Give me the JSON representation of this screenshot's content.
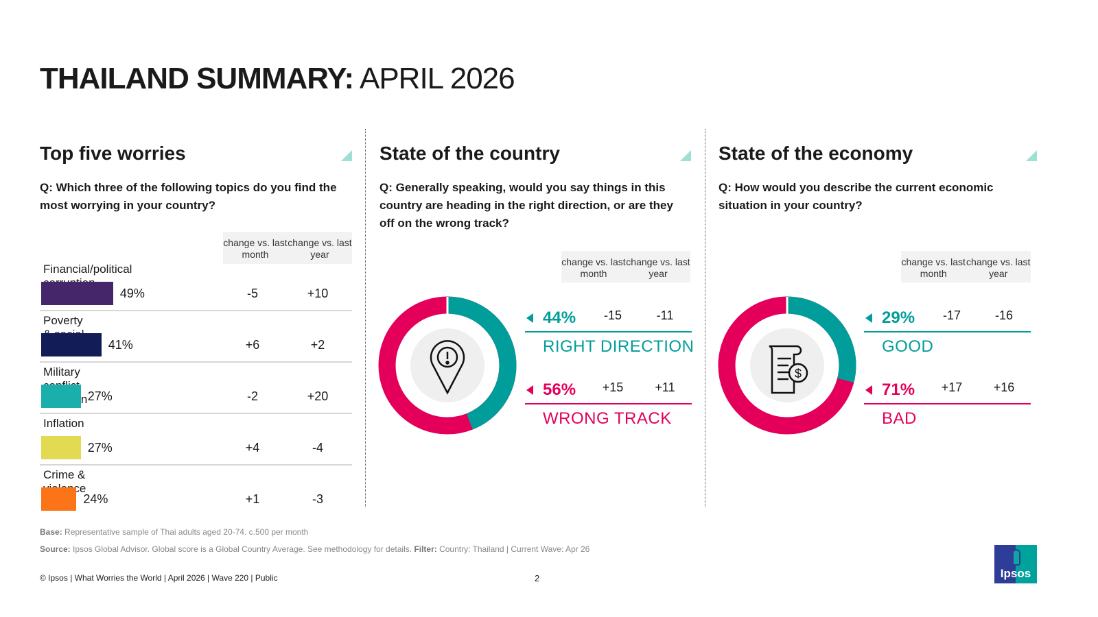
{
  "title": {
    "bold": "THAILAND SUMMARY:",
    "light": " APRIL 2026"
  },
  "header_cols": {
    "month": "change vs. last month",
    "year": "change vs. last year"
  },
  "worries": {
    "title": "Top five worries",
    "question": "Q: Which three of the following topics do you find the most worrying in your country?",
    "items": [
      {
        "label": "Financial/political corruption",
        "pct": "49%",
        "value": 49,
        "month": "-5",
        "year": "+10",
        "color": "#46266a"
      },
      {
        "label": "Poverty & social inequality",
        "pct": "41%",
        "value": 41,
        "month": "+6",
        "year": "+2",
        "color": "#121c57"
      },
      {
        "label": "Military conflict between",
        "pct": "27%",
        "value": 27,
        "month": "-2",
        "year": "+20",
        "color": "#1aafab"
      },
      {
        "label": "Inflation",
        "pct": "27%",
        "value": 27,
        "month": "+4",
        "year": "-4",
        "color": "#e2da52"
      },
      {
        "label": "Crime & violence",
        "pct": "24%",
        "value": 24,
        "month": "+1",
        "year": "-3",
        "color": "#fc7418"
      }
    ]
  },
  "country": {
    "title": "State of the country",
    "question": "Q: Generally speaking, would you say things in this country are heading in the right direction, or are they off on the wrong track?",
    "icon": "location-alert-icon",
    "positive": {
      "pct": "44%",
      "value": 44,
      "month": "-15",
      "year": "-11",
      "label": "RIGHT DIRECTION"
    },
    "negative": {
      "pct": "56%",
      "value": 56,
      "month": "+15",
      "year": "+11",
      "label": "WRONG TRACK"
    }
  },
  "economy": {
    "title": "State of the economy",
    "question": "Q: How would you describe the current economic situation in your country?",
    "icon": "invoice-dollar-icon",
    "positive": {
      "pct": "29%",
      "value": 29,
      "month": "-17",
      "year": "-16",
      "label": "GOOD"
    },
    "negative": {
      "pct": "71%",
      "value": 71,
      "month": "+17",
      "year": "+16",
      "label": "BAD"
    }
  },
  "colors": {
    "teal": "#009d9a",
    "pink": "#e4005a"
  },
  "footer": {
    "base_label": "Base:",
    "base": " Representative sample of Thai adults aged 20-74. c.500 per month",
    "source_label": "Source:",
    "source": " Ipsos Global Advisor. Global score is a Global Country Average. See methodology for details. ",
    "filter_label": "Filter:",
    "filter": " Country: Thailand | Current Wave: Apr 26",
    "copyright": "© Ipsos | What Worries the World | April 2026 | Wave 220 | Public",
    "page": "2",
    "logo": "Ipsos"
  }
}
